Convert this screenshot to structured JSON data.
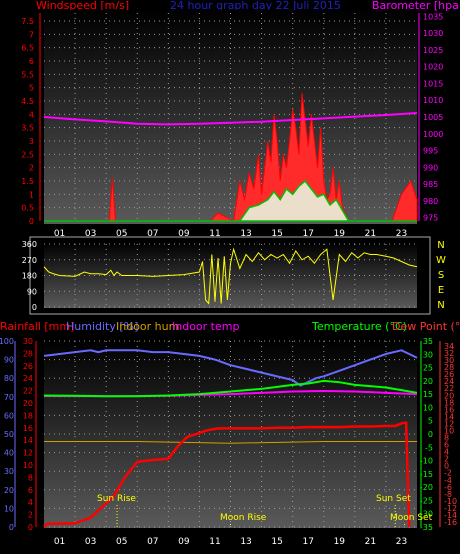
{
  "header": {
    "windspeed_label": "Windspeed [m/s]",
    "title": "24 hour graph day  22 Juli 2015",
    "barometer_label": "Barometer [hpa]"
  },
  "x_ticks": [
    "01",
    "03",
    "05",
    "07",
    "09",
    "11",
    "13",
    "15",
    "17",
    "19",
    "21",
    "23"
  ],
  "bottom_x_ticks": [
    "01",
    "03",
    "05",
    "07",
    "09",
    "11",
    "13",
    "15",
    "17",
    "19",
    "21",
    "23"
  ],
  "colors": {
    "wind": "#ff0000",
    "gust": "#ff2a2a",
    "wind_avg": "#00c000",
    "barometer": "#ff00ff",
    "direction": "#ffff00",
    "humidity": "#6a6aff",
    "temperature": "#00ff00",
    "dewpoint": "#ff2222",
    "rain": "#ff0000",
    "indoor_hum": "#d0a000",
    "indoor_temp": "#ff00ff",
    "dew_axis": "#ff3333"
  },
  "chart_data": [
    {
      "type": "area",
      "id": "wind-baro",
      "left_axis": {
        "label": "Windspeed [m/s]",
        "ticks": [
          "0",
          "0.5",
          "1",
          "1.5",
          "2",
          "2.5",
          "3",
          "3.5",
          "4",
          "4.5",
          "5",
          "5.5",
          "6",
          "6.5",
          "7",
          "7.5"
        ],
        "range": [
          0,
          7.8
        ]
      },
      "right_axis": {
        "label": "Barometer [hpa]",
        "ticks": [
          "975",
          "980",
          "985",
          "990",
          "995",
          "1000",
          "1005",
          "1010",
          "1015",
          "1020",
          "1025",
          "1030",
          "1035"
        ],
        "range": [
          974,
          1036
        ]
      },
      "barometer": {
        "x": [
          0,
          2,
          4,
          6,
          8,
          10,
          12,
          14,
          16,
          18,
          20,
          22,
          24
        ],
        "y": [
          1005.0,
          1004.3,
          1003.7,
          1003.0,
          1002.8,
          1003.0,
          1003.3,
          1003.6,
          1004.1,
          1004.6,
          1005.1,
          1005.6,
          1006.2
        ]
      },
      "wind_gust": {
        "x": [
          0,
          4.2,
          4.4,
          4.6,
          10.7,
          11.2,
          12.2,
          12.6,
          12.9,
          13.2,
          13.5,
          13.8,
          14.0,
          14.2,
          14.4,
          14.6,
          14.8,
          15.0,
          15.2,
          15.4,
          15.6,
          15.8,
          16.0,
          16.2,
          16.4,
          16.6,
          16.8,
          17.0,
          17.2,
          17.4,
          17.6,
          17.8,
          18.0,
          18.2,
          18.4,
          18.6,
          18.8,
          19.0,
          19.2,
          19.6,
          22.4,
          23.0,
          23.6,
          24
        ],
        "y": [
          0,
          0,
          1.6,
          0,
          0,
          0.3,
          0,
          1.5,
          0.8,
          1.8,
          1.2,
          2.5,
          1.0,
          2.0,
          3.0,
          2.2,
          4.0,
          3.0,
          1.5,
          2.5,
          2.0,
          3.0,
          4.2,
          3.5,
          2.5,
          4.8,
          3.8,
          2.8,
          4.0,
          3.0,
          2.0,
          3.5,
          1.5,
          0.8,
          1.0,
          2.0,
          0.8,
          1.5,
          0.5,
          0,
          0,
          1.0,
          1.5,
          0.8
        ]
      },
      "wind_avg": {
        "x": [
          0,
          12.6,
          13.2,
          13.8,
          14.4,
          14.8,
          15.2,
          15.6,
          16.0,
          16.4,
          16.8,
          17.2,
          17.6,
          18.0,
          18.4,
          18.8,
          19.2,
          19.6,
          24
        ],
        "y": [
          0,
          0,
          0.5,
          0.6,
          0.8,
          1.1,
          0.8,
          1.2,
          1.0,
          1.3,
          1.5,
          1.2,
          0.9,
          1.0,
          0.6,
          0.8,
          0.4,
          0,
          0
        ]
      }
    },
    {
      "type": "line",
      "id": "wind-direction",
      "left_axis": {
        "ticks": [
          "0",
          "90",
          "180",
          "270",
          "360"
        ],
        "range": [
          0,
          360
        ]
      },
      "right_axis": {
        "ticks": [
          "N",
          "W",
          "S",
          "E",
          "N"
        ]
      },
      "x": [
        0,
        0.3,
        0.6,
        1,
        2,
        2.6,
        3,
        3.5,
        4,
        4.3,
        4.5,
        4.7,
        5,
        6,
        7,
        8,
        9,
        10,
        10.2,
        10.4,
        10.6,
        10.8,
        11,
        11.2,
        11.4,
        11.6,
        11.8,
        12,
        12.2,
        12.6,
        13,
        13.4,
        13.8,
        14.2,
        14.6,
        15,
        15.4,
        15.8,
        16.2,
        16.6,
        17,
        17.4,
        17.8,
        18.2,
        18.6,
        19,
        19.4,
        19.8,
        20.2,
        20.6,
        21,
        21.4,
        22,
        22.5,
        23,
        23.5,
        24
      ],
      "y": [
        230,
        200,
        190,
        180,
        175,
        200,
        190,
        190,
        185,
        210,
        180,
        200,
        180,
        180,
        175,
        180,
        185,
        200,
        260,
        40,
        20,
        300,
        30,
        280,
        20,
        290,
        40,
        250,
        330,
        220,
        300,
        260,
        310,
        270,
        300,
        280,
        300,
        250,
        320,
        270,
        290,
        250,
        300,
        330,
        40,
        300,
        260,
        310,
        280,
        310,
        300,
        300,
        290,
        280,
        260,
        240,
        230
      ]
    },
    {
      "type": "line",
      "id": "temp-hum-rain",
      "axes": {
        "rainfall_label": "Rainfall [mm]",
        "humidity_label": "Humidity [%]",
        "indoor_hum_label": "Indoor hum",
        "indoor_temp_label": "Indoor temp",
        "temperature_label": "Temperature (°C)",
        "dewpoint_label": "Dew Point (°C)",
        "humidity_ticks": [
          "0",
          "10",
          "20",
          "30",
          "40",
          "50",
          "60",
          "70",
          "80",
          "90",
          "100"
        ],
        "rain_ticks": [
          "0",
          "2",
          "4",
          "6",
          "8",
          "10",
          "12",
          "14",
          "16",
          "18",
          "20",
          "22",
          "24",
          "26",
          "28",
          "30"
        ],
        "temp_ticks": [
          "-35",
          "-30",
          "-25",
          "-20",
          "-15",
          "-10",
          "-5",
          "0",
          "5",
          "10",
          "15",
          "20",
          "25",
          "30",
          "35"
        ],
        "dew_ticks": [
          "-16",
          "-14",
          "-12",
          "-10",
          "-8",
          "-6",
          "-4",
          "-2",
          "0",
          "2",
          "4",
          "6",
          "8",
          "10",
          "12",
          "14",
          "16",
          "18",
          "20",
          "22",
          "24",
          "26",
          "28",
          "30",
          "32",
          "34"
        ]
      },
      "humidity": {
        "x": [
          0,
          1,
          2,
          3,
          3.5,
          4,
          5,
          6,
          7,
          8,
          9,
          10,
          11,
          12,
          13,
          14,
          15,
          16,
          16.5,
          17,
          17.5,
          18,
          19,
          20,
          21,
          22,
          23,
          23.5,
          24
        ],
        "y": [
          92,
          93,
          94,
          95,
          94,
          95,
          95,
          95,
          94,
          94,
          93,
          92,
          90,
          87,
          85,
          83,
          81,
          79,
          76,
          78,
          80,
          81,
          84,
          87,
          90,
          93,
          95,
          93,
          91
        ]
      },
      "temperature": {
        "x": [
          0,
          2,
          4,
          6,
          8,
          10,
          12,
          14,
          16,
          17,
          18,
          19,
          20,
          22,
          23,
          24
        ],
        "y": [
          14.5,
          14.4,
          14.2,
          14.2,
          14.5,
          15.0,
          16.0,
          17.0,
          18.5,
          19.0,
          20.0,
          19.5,
          18.5,
          17.5,
          16.5,
          15.5
        ]
      },
      "indoor_temp": {
        "x": [
          0,
          4,
          8,
          12,
          14,
          16,
          18,
          20,
          22,
          24
        ],
        "y": [
          14.3,
          14.2,
          14.4,
          15.0,
          15.5,
          16.0,
          16.2,
          16.0,
          15.5,
          15.0
        ]
      },
      "indoor_hum": {
        "x": [
          0,
          6,
          12,
          18,
          24
        ],
        "y": [
          46,
          46,
          45,
          46,
          46
        ]
      },
      "rain": {
        "x": [
          0,
          0.2,
          2,
          3,
          4.5,
          5.2,
          6,
          7,
          8,
          8.6,
          9.2,
          10.5,
          11.2,
          12,
          13,
          14,
          15,
          16,
          17,
          18,
          19,
          20,
          21,
          22,
          22.6,
          23.1,
          23.3,
          23.5
        ],
        "y": [
          0,
          0.5,
          0.6,
          1.5,
          5,
          8,
          10.5,
          10.8,
          11,
          13,
          14.5,
          15.6,
          15.9,
          15.9,
          15.9,
          15.9,
          16.0,
          16.0,
          16.1,
          16.1,
          16.1,
          16.2,
          16.2,
          16.3,
          16.3,
          16.8,
          16.8,
          0
        ]
      },
      "annotations": {
        "sun_rise": "Sun Rise",
        "moon_rise": "Moon Rise",
        "sun_set": "Sun Set",
        "moon_set": "Moon Set"
      }
    }
  ]
}
